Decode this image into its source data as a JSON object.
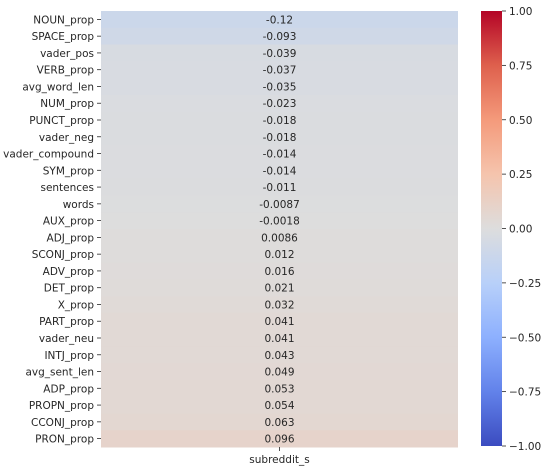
{
  "chart_data": {
    "type": "heatmap",
    "colormap": "coolwarm",
    "columns": [
      "subreddit_s"
    ],
    "rows": [
      {
        "label": "NOUN_prop",
        "value": -0.12,
        "text": "-0.12"
      },
      {
        "label": "SPACE_prop",
        "value": -0.093,
        "text": "-0.093"
      },
      {
        "label": "vader_pos",
        "value": -0.039,
        "text": "-0.039"
      },
      {
        "label": "VERB_prop",
        "value": -0.037,
        "text": "-0.037"
      },
      {
        "label": "avg_word_len",
        "value": -0.035,
        "text": "-0.035"
      },
      {
        "label": "NUM_prop",
        "value": -0.023,
        "text": "-0.023"
      },
      {
        "label": "PUNCT_prop",
        "value": -0.018,
        "text": "-0.018"
      },
      {
        "label": "vader_neg",
        "value": -0.018,
        "text": "-0.018"
      },
      {
        "label": "vader_compound",
        "value": -0.014,
        "text": "-0.014"
      },
      {
        "label": "SYM_prop",
        "value": -0.014,
        "text": "-0.014"
      },
      {
        "label": "sentences",
        "value": -0.011,
        "text": "-0.011"
      },
      {
        "label": "words",
        "value": -0.0087,
        "text": "-0.0087"
      },
      {
        "label": "AUX_prop",
        "value": -0.0018,
        "text": "-0.0018"
      },
      {
        "label": "ADJ_prop",
        "value": 0.0086,
        "text": "0.0086"
      },
      {
        "label": "SCONJ_prop",
        "value": 0.012,
        "text": "0.012"
      },
      {
        "label": "ADV_prop",
        "value": 0.016,
        "text": "0.016"
      },
      {
        "label": "DET_prop",
        "value": 0.021,
        "text": "0.021"
      },
      {
        "label": "X_prop",
        "value": 0.032,
        "text": "0.032"
      },
      {
        "label": "PART_prop",
        "value": 0.041,
        "text": "0.041"
      },
      {
        "label": "vader_neu",
        "value": 0.041,
        "text": "0.041"
      },
      {
        "label": "INTJ_prop",
        "value": 0.043,
        "text": "0.043"
      },
      {
        "label": "avg_sent_len",
        "value": 0.049,
        "text": "0.049"
      },
      {
        "label": "ADP_prop",
        "value": 0.053,
        "text": "0.053"
      },
      {
        "label": "PROPN_prop",
        "value": 0.054,
        "text": "0.054"
      },
      {
        "label": "CCONJ_prop",
        "value": 0.063,
        "text": "0.063"
      },
      {
        "label": "PRON_prop",
        "value": 0.096,
        "text": "0.096"
      }
    ],
    "colorbar": {
      "min": -1.0,
      "max": 1.0,
      "ticks": [
        {
          "value": 1.0,
          "label": "1.00"
        },
        {
          "value": 0.75,
          "label": "0.75"
        },
        {
          "value": 0.5,
          "label": "0.50"
        },
        {
          "value": 0.25,
          "label": "0.25"
        },
        {
          "value": 0.0,
          "label": "0.00"
        },
        {
          "value": -0.25,
          "label": "−0.25"
        },
        {
          "value": -0.5,
          "label": "−0.50"
        },
        {
          "value": -0.75,
          "label": "−0.75"
        },
        {
          "value": -1.0,
          "label": "−1.00"
        }
      ]
    },
    "title": "",
    "xlabel": "",
    "ylabel": ""
  },
  "colors": {
    "text": "#262626",
    "tick": "#262626",
    "background": "#ffffff"
  }
}
